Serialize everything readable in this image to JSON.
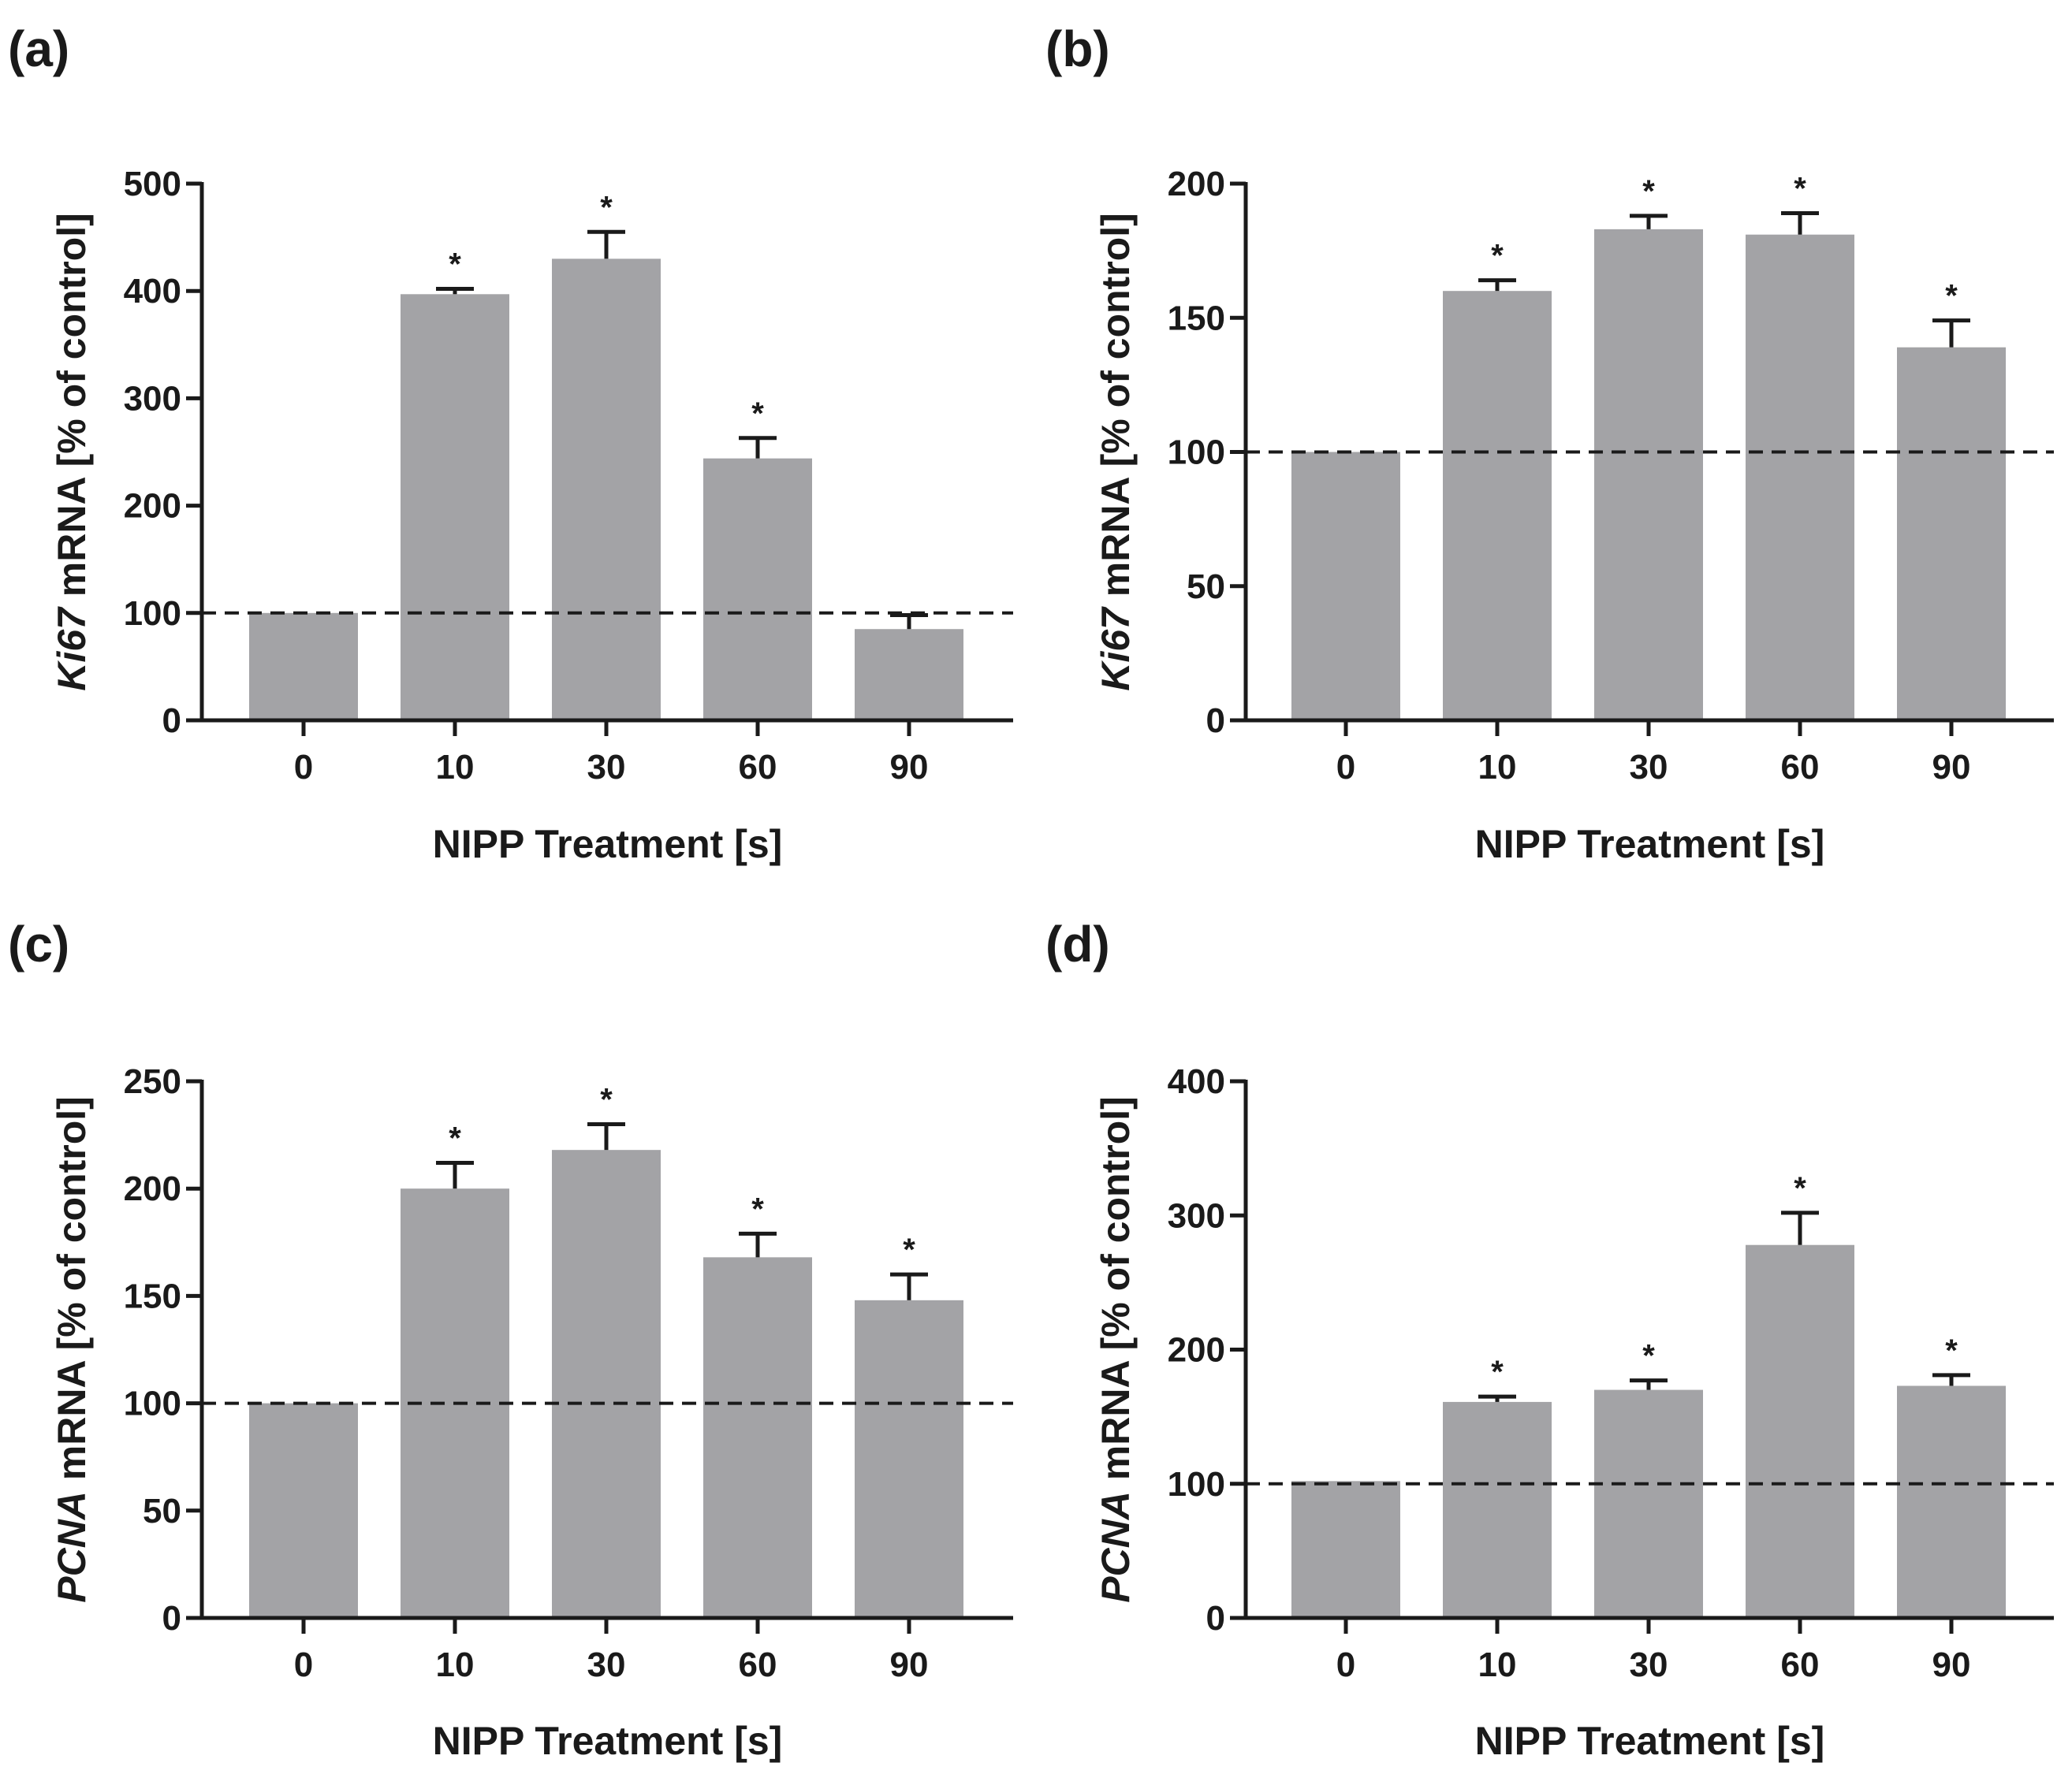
{
  "chart_data": [
    {
      "panel": "(a)",
      "type": "bar",
      "categories": [
        "0",
        "10",
        "30",
        "60",
        "90"
      ],
      "values": [
        100,
        397,
        430,
        244,
        85
      ],
      "errors": [
        0,
        5,
        25,
        19,
        13
      ],
      "significance": [
        "",
        "*",
        "*",
        "*",
        ""
      ],
      "reference_line": 100,
      "ylim": [
        0,
        500
      ],
      "yticks": [
        "0",
        "100",
        "200",
        "300",
        "400",
        "500"
      ],
      "ylabel_italic": "Ki67",
      "ylabel_rest": " mRNA [% of control]",
      "xlabel": "NIPP Treatment [s]"
    },
    {
      "panel": "(b)",
      "type": "bar",
      "categories": [
        "0",
        "10",
        "30",
        "60",
        "90"
      ],
      "values": [
        100,
        160,
        183,
        181,
        139
      ],
      "errors": [
        0,
        4,
        5,
        8,
        10
      ],
      "significance": [
        "",
        "*",
        "*",
        "*",
        "*"
      ],
      "reference_line": 100,
      "ylim": [
        0,
        200
      ],
      "yticks": [
        "0",
        "50",
        "100",
        "150",
        "200"
      ],
      "ylabel_italic": "Ki67",
      "ylabel_rest": " mRNA [% of control]",
      "xlabel": "NIPP Treatment [s]"
    },
    {
      "panel": "(c)",
      "type": "bar",
      "categories": [
        "0",
        "10",
        "30",
        "60",
        "90"
      ],
      "values": [
        100,
        200,
        218,
        168,
        148
      ],
      "errors": [
        0,
        12,
        12,
        11,
        12
      ],
      "significance": [
        "",
        "*",
        "*",
        "*",
        "*"
      ],
      "reference_line": 100,
      "ylim": [
        0,
        250
      ],
      "yticks": [
        "0",
        "50",
        "100",
        "150",
        "200",
        "250"
      ],
      "ylabel_italic": "PCNA",
      "ylabel_rest": " mRNA [% of control]",
      "xlabel": "NIPP Treatment [s]"
    },
    {
      "panel": "(d)",
      "type": "bar",
      "categories": [
        "0",
        "10",
        "30",
        "60",
        "90"
      ],
      "values": [
        102,
        161,
        170,
        278,
        173
      ],
      "errors": [
        0,
        4,
        7,
        24,
        8
      ],
      "significance": [
        "",
        "*",
        "*",
        "*",
        "*"
      ],
      "reference_line": 100,
      "ylim": [
        0,
        400
      ],
      "yticks": [
        "0",
        "100",
        "200",
        "300",
        "400"
      ],
      "ylabel_italic": "PCNA",
      "ylabel_rest": " mRNA [% of control]",
      "xlabel": "NIPP Treatment [s]"
    }
  ],
  "colors": {
    "bar": "#a3a3a6",
    "axis": "#1a1a1a",
    "reference_line": "#1a1a1a",
    "background": "#ffffff"
  }
}
